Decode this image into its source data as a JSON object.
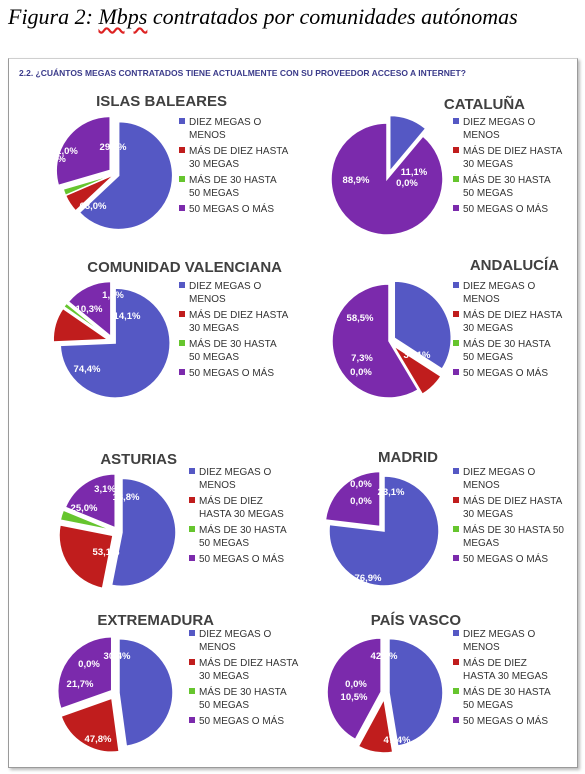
{
  "figure": {
    "title_prefix": "Figura 2:",
    "title_word": "Mbps",
    "title_rest": "contratados por comunidades autónomas"
  },
  "question": "2.2. ¿CUÁNTOS MEGAS CONTRATADOS TIENE ACTUALMENTE CON SU PROVEEDOR ACCESO A INTERNET?",
  "colors": [
    "#5558c4",
    "#c01d1d",
    "#66c52e",
    "#7b2aac"
  ],
  "chart_data": [
    {
      "type": "pie",
      "title": "ISLAS BALEARES",
      "categories": [
        [
          "DIEZ MEGAS O",
          "MENOS"
        ],
        [
          "MÁS DE DIEZ HASTA",
          "30 MEGAS"
        ],
        [
          "MÁS DE 30 HASTA",
          "50 MEGAS"
        ],
        [
          "50 MEGAS O MÁS"
        ]
      ],
      "values": [
        63.0,
        5.5,
        2.0,
        29.5
      ],
      "labels": [
        "63,0%",
        "5,5%",
        "2,0%",
        "29,5%"
      ]
    },
    {
      "type": "pie",
      "title": "CATALUÑA",
      "categories": [
        [
          "DIEZ MEGAS O",
          "MENOS"
        ],
        [
          "MÁS DE DIEZ HASTA",
          "30 MEGAS"
        ],
        [
          "MÁS DE 30 HASTA",
          "50 MEGAS"
        ],
        [
          "50 MEGAS O MÁS"
        ]
      ],
      "values": [
        11.1,
        0.0,
        0.0,
        88.9
      ],
      "labels": [
        "11,1%",
        "",
        "0,0%",
        "88,9%"
      ]
    },
    {
      "type": "pie",
      "title": "COMUNIDAD VALENCIANA",
      "categories": [
        [
          "DIEZ MEGAS O",
          "MENOS"
        ],
        [
          "MÁS DE DIEZ HASTA",
          "30 MEGAS"
        ],
        [
          "MÁS DE 30 HASTA",
          "50 MEGAS"
        ],
        [
          "50 MEGAS O MÁS"
        ]
      ],
      "values": [
        74.4,
        10.3,
        1.3,
        14.1
      ],
      "labels": [
        "74,4%",
        "10,3%",
        "1,3%",
        "14,1%"
      ]
    },
    {
      "type": "pie",
      "title": "ANDALUCÍA",
      "categories": [
        [
          "DIEZ MEGAS O",
          "MENOS"
        ],
        [
          "MÁS DE DIEZ HASTA",
          "30 MEGAS"
        ],
        [
          "MÁS DE 30 HASTA",
          "50 MEGAS"
        ],
        [
          "50 MEGAS O MÁS"
        ]
      ],
      "values": [
        34.1,
        7.3,
        0.0,
        58.5
      ],
      "labels": [
        "34,1%",
        "7,3%",
        "0,0%",
        "58,5%"
      ]
    },
    {
      "type": "pie",
      "title": "ASTURIAS",
      "categories": [
        [
          "DIEZ MEGAS O",
          "MENOS"
        ],
        [
          "MÁS DE DIEZ",
          "HASTA 30 MEGAS"
        ],
        [
          "MÁS DE 30 HASTA",
          "50 MEGAS"
        ],
        [
          "50 MEGAS O MÁS"
        ]
      ],
      "values": [
        53.1,
        25.0,
        3.1,
        18.8
      ],
      "labels": [
        "53,1%",
        "25,0%",
        "3,1%",
        "18,8%"
      ]
    },
    {
      "type": "pie",
      "title": "MADRID",
      "categories": [
        [
          "DIEZ MEGAS O",
          "MENOS"
        ],
        [
          "MÁS DE DIEZ HASTA",
          "30 MEGAS"
        ],
        [
          "MÁS DE 30 HASTA 50",
          "MEGAS"
        ],
        [
          "50 MEGAS O MÁS"
        ]
      ],
      "values": [
        76.9,
        0.0,
        0.0,
        23.1
      ],
      "labels": [
        "76,9%",
        "0,0%",
        "0,0%",
        "23,1%"
      ]
    },
    {
      "type": "pie",
      "title": "EXTREMADURA",
      "categories": [
        [
          "DIEZ MEGAS O",
          "MENOS"
        ],
        [
          "MÁS DE DIEZ HASTA",
          "30 MEGAS"
        ],
        [
          "MÁS DE 30 HASTA",
          "50 MEGAS"
        ],
        [
          "50 MEGAS O MÁS"
        ]
      ],
      "values": [
        47.8,
        21.7,
        0.0,
        30.4
      ],
      "labels": [
        "47,8%",
        "21,7%",
        "0,0%",
        "30,4%"
      ]
    },
    {
      "type": "pie",
      "title": "PAÍS VASCO",
      "categories": [
        [
          "DIEZ MEGAS O",
          "MENOS"
        ],
        [
          "MÁS DE DIEZ",
          "HASTA 30 MEGAS"
        ],
        [
          "MÁS DE 30 HASTA",
          "50 MEGAS"
        ],
        [
          "50 MEGAS O MÁS"
        ]
      ],
      "values": [
        47.4,
        10.5,
        0.0,
        42.1
      ],
      "labels": [
        "47,4%",
        "10,5%",
        "0,0%",
        "42,1%"
      ]
    }
  ]
}
